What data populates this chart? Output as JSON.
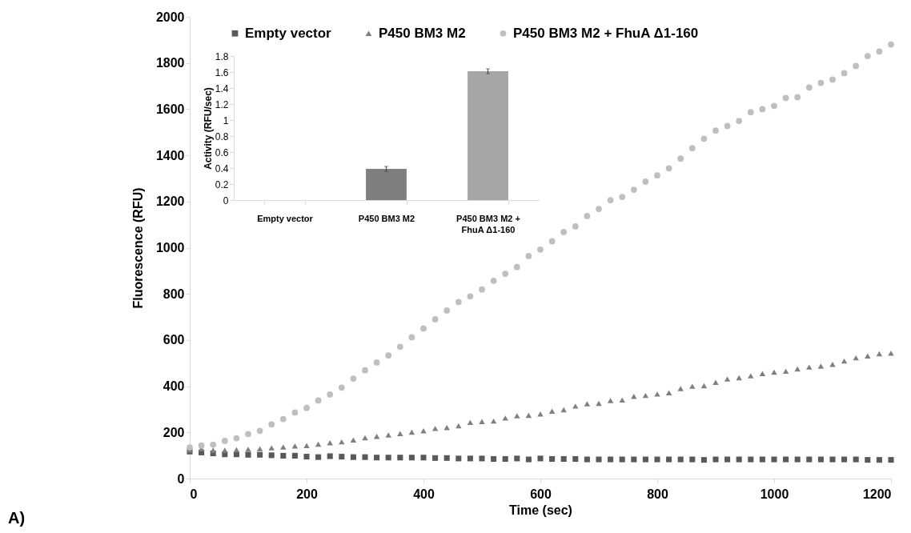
{
  "chart_data": [
    {
      "type": "scatter",
      "xlabel": "Time (sec)",
      "ylabel": "Fluorescence (RFU)",
      "annotations": [
        "A)"
      ],
      "x": [
        0,
        20,
        40,
        60,
        80,
        100,
        120,
        140,
        160,
        180,
        200,
        220,
        240,
        260,
        280,
        300,
        320,
        340,
        360,
        380,
        400,
        420,
        440,
        460,
        480,
        500,
        520,
        540,
        560,
        580,
        600,
        620,
        640,
        660,
        680,
        700,
        720,
        740,
        760,
        780,
        800,
        820,
        840,
        860,
        880,
        900,
        920,
        940,
        960,
        980,
        1000,
        1020,
        1040,
        1060,
        1080,
        1100,
        1120,
        1140,
        1160,
        1180,
        1200
      ],
      "series": [
        {
          "name": "Empty vector",
          "color": "#595959",
          "marker": "square",
          "values": [
            117,
            113,
            109,
            105,
            105,
            103,
            103,
            101,
            99,
            99,
            95,
            93,
            97,
            95,
            93,
            93,
            91,
            91,
            91,
            91,
            91,
            89,
            89,
            87,
            87,
            87,
            85,
            85,
            87,
            83,
            87,
            85,
            85,
            85,
            83,
            83,
            83,
            83,
            83,
            83,
            83,
            83,
            83,
            83,
            81,
            83,
            83,
            83,
            83,
            83,
            83,
            83,
            83,
            83,
            83,
            83,
            83,
            83,
            81,
            81,
            81
          ]
        },
        {
          "name": "P450 BM3 M2",
          "color": "#7f7f7f",
          "marker": "triangle",
          "values": [
            124,
            129,
            123,
            123,
            125,
            127,
            129,
            133,
            137,
            141,
            143,
            149,
            155,
            159,
            167,
            177,
            183,
            189,
            195,
            201,
            207,
            217,
            221,
            229,
            243,
            247,
            249,
            262,
            272,
            274,
            280,
            292,
            298,
            314,
            324,
            326,
            338,
            340,
            356,
            360,
            366,
            372,
            390,
            400,
            402,
            417,
            431,
            437,
            445,
            455,
            461,
            465,
            475,
            483,
            487,
            495,
            509,
            523,
            531,
            541,
            543
          ]
        },
        {
          "name": "P450 BM3 M2 + FhuA Δ1-160",
          "color": "#bfbfbf",
          "marker": "circle",
          "values": [
            135,
            143,
            147,
            163,
            175,
            193,
            207,
            235,
            258,
            286,
            306,
            338,
            364,
            394,
            433,
            469,
            503,
            533,
            571,
            612,
            650,
            690,
            728,
            765,
            789,
            819,
            857,
            887,
            916,
            964,
            992,
            1028,
            1068,
            1092,
            1137,
            1168,
            1206,
            1220,
            1251,
            1286,
            1313,
            1344,
            1386,
            1431,
            1472,
            1507,
            1527,
            1549,
            1587,
            1600,
            1614,
            1649,
            1652,
            1694,
            1714,
            1728,
            1756,
            1787,
            1830,
            1850,
            1880
          ]
        }
      ],
      "xlim": [
        0,
        1200
      ],
      "xticks": [
        0,
        200,
        400,
        600,
        800,
        1000,
        1200
      ],
      "ylim": [
        0,
        2000
      ],
      "yticks": [
        0,
        200,
        400,
        600,
        800,
        1000,
        1200,
        1400,
        1600,
        1800,
        2000
      ],
      "legend": "top",
      "grid": false
    },
    {
      "type": "bar",
      "ylabel": "Activity (RFU/sec)",
      "categories": [
        "Empty vector",
        "P450 BM3 M2",
        "P450 BM3 M2 +\nFhuA Δ1-160"
      ],
      "values": [
        0,
        0.39,
        1.61
      ],
      "errors": [
        null,
        0.03,
        0.03
      ],
      "colors": [
        "#595959",
        "#7f7f7f",
        "#a6a6a6"
      ],
      "ylim": [
        0,
        1.8
      ],
      "yticks": [
        0,
        0.2,
        0.4,
        0.6,
        0.8,
        1,
        1.2,
        1.4,
        1.6,
        1.8
      ],
      "grid": false
    }
  ]
}
